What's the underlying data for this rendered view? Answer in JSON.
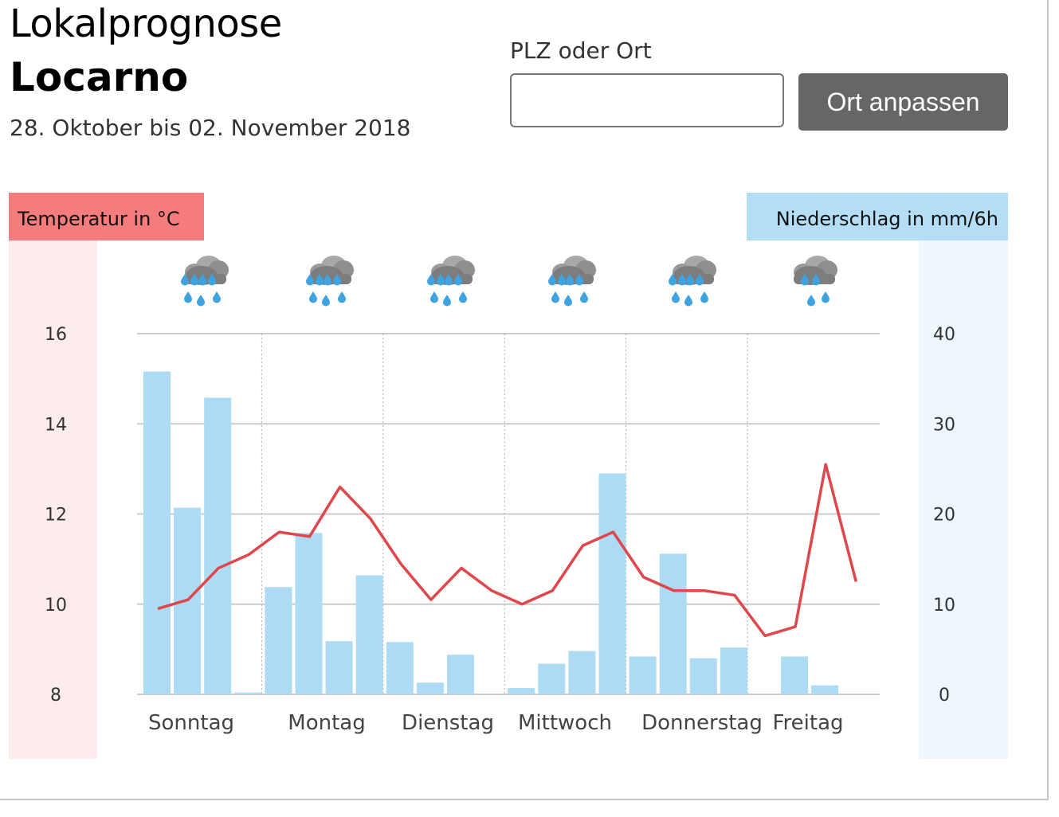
{
  "header": {
    "title": "Lokalprognose",
    "location": "Locarno",
    "date_range": "28. Oktober bis 02. November 2018"
  },
  "search": {
    "label": "PLZ oder Ort",
    "value": "",
    "placeholder": "",
    "button_label": "Ort anpassen"
  },
  "colors": {
    "temperature": "#e0474c",
    "temperature_label_bg": "#f47c7c",
    "temperature_axis_bg": "#fdecec",
    "precipitation": "#addbf4",
    "precipitation_label_bg": "#b3def5",
    "precipitation_axis_bg": "#eef7fd",
    "grid": "#cccccc",
    "day_separator": "#aaaaaa"
  },
  "chart_data": {
    "type": "bar+line",
    "temperature_axis": {
      "label": "Temperatur in °C",
      "ticks": [
        16,
        14,
        12,
        10,
        8
      ],
      "ylim": [
        8,
        16
      ]
    },
    "precipitation_axis": {
      "label": "Niederschlag in mm/6h",
      "ticks": [
        40,
        30,
        20,
        10,
        0
      ],
      "ylim": [
        0,
        40
      ]
    },
    "days": [
      "Sonntag",
      "Montag",
      "Dienstag",
      "Mittwoch",
      "Donnerstag",
      "Freitag"
    ],
    "day_icons": [
      "rain-cloud-heavy-icon",
      "rain-cloud-heavy-icon",
      "rain-cloud-heavy-icon",
      "rain-cloud-heavy-icon",
      "rain-cloud-heavy-icon",
      "rain-cloud-light-icon"
    ],
    "precipitation_mm_per_6h": [
      35.8,
      20.7,
      32.9,
      0.2,
      11.9,
      17.9,
      5.9,
      13.2,
      5.8,
      1.3,
      4.4,
      0,
      0.7,
      3.4,
      4.8,
      24.5,
      4.2,
      15.6,
      4.0,
      5.2,
      0,
      4.2,
      1.0,
      0
    ],
    "temperature_c": [
      9.9,
      10.1,
      10.8,
      11.1,
      11.6,
      11.5,
      12.6,
      11.9,
      10.9,
      10.1,
      10.8,
      10.3,
      10.0,
      10.3,
      11.3,
      11.6,
      10.6,
      10.3,
      10.3,
      10.2,
      9.3,
      9.5,
      13.1,
      10.5
    ]
  }
}
